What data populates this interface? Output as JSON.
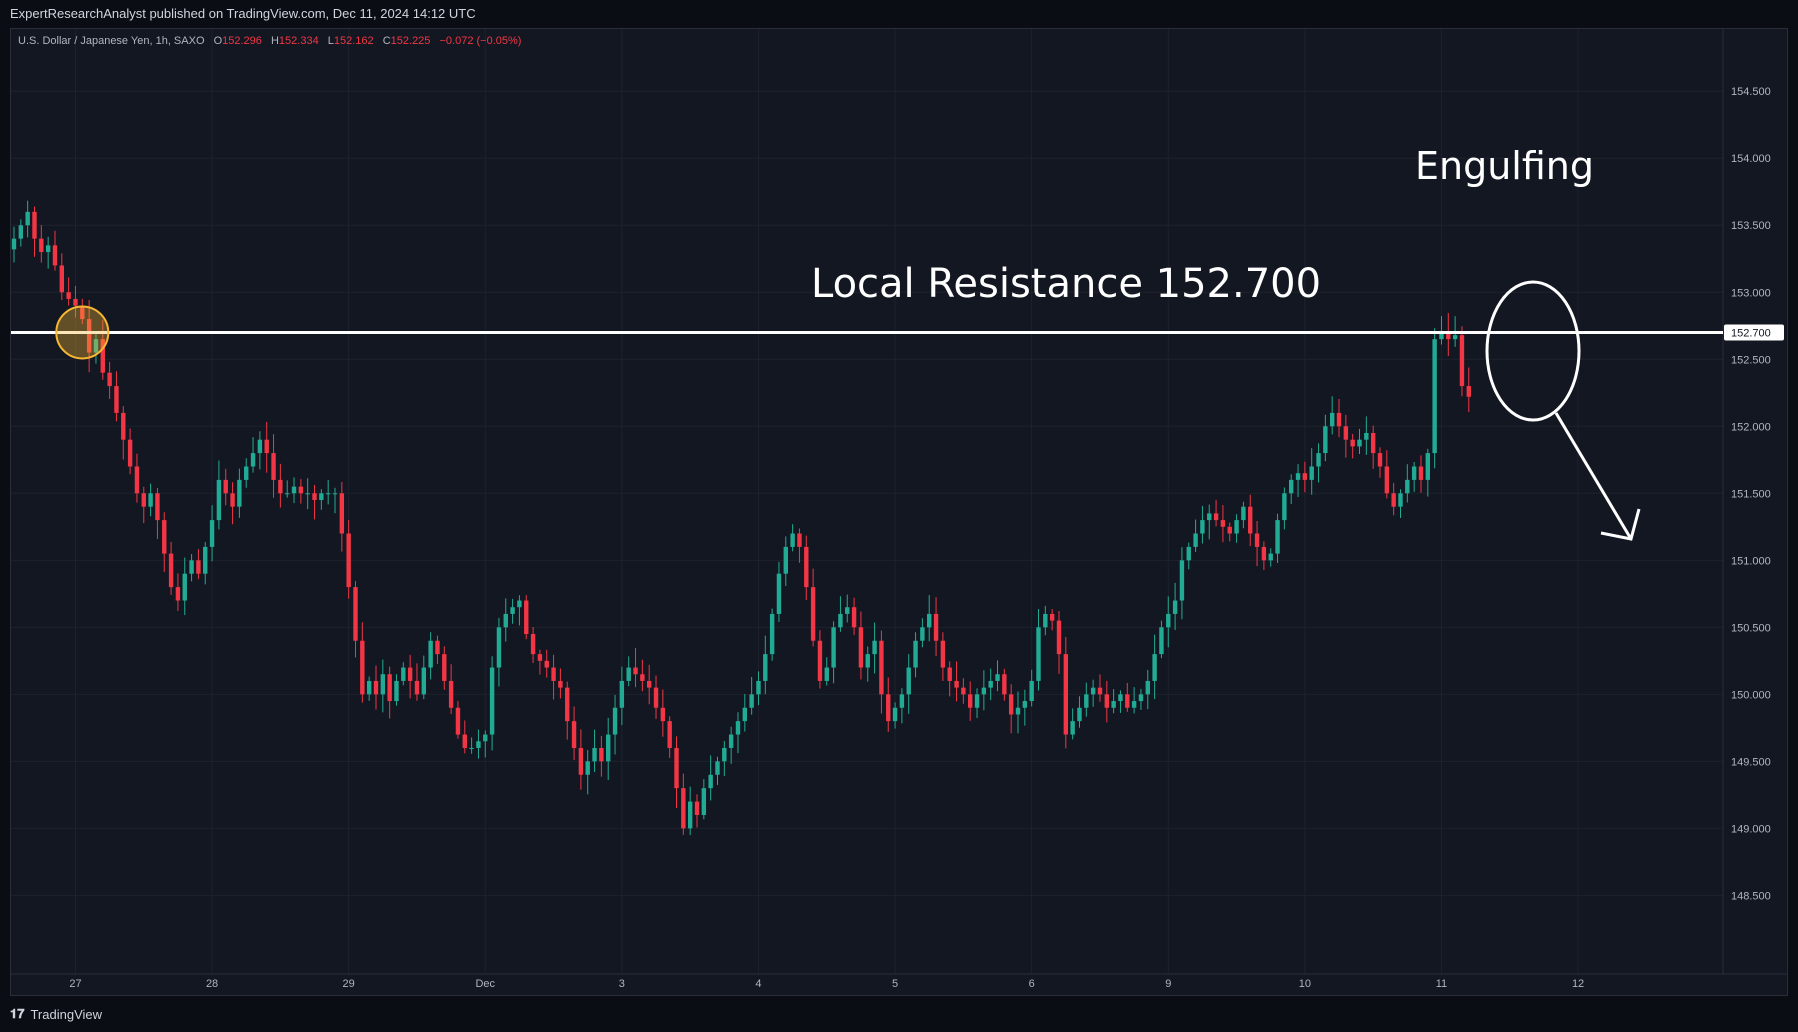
{
  "header": {
    "publisher": "ExpertResearchAnalyst published on TradingView.com, Dec 11, 2024 14:12 UTC"
  },
  "legend": {
    "symbol": "U.S. Dollar / Japanese Yen, 1h, SAXO",
    "open_label": "O",
    "open": "152.296",
    "high_label": "H",
    "high": "152.334",
    "low_label": "L",
    "low": "152.162",
    "close_label": "C",
    "close": "152.225",
    "change": "−0.072 (−0.05%)"
  },
  "footer": {
    "brand": "TradingView",
    "logo_icon": "tradingview-logo-icon"
  },
  "annotations": {
    "resistance_text": "Local Resistance 152.700",
    "engulfing_text": "Engulfing",
    "price_marker": "152.700",
    "resistance_level": 152.7
  },
  "colors": {
    "up": "#22ab94",
    "down": "#f23645",
    "background": "#131722",
    "grid": "#1e222d",
    "axis_text": "#b2b5be",
    "circle_highlight": "#f7b731"
  },
  "chart_data": {
    "type": "candlestick",
    "title": "",
    "xlabel": "",
    "ylabel": "",
    "ylim": [
      148.1,
      154.8
    ],
    "y_ticks": [
      "154.500",
      "154.000",
      "153.500",
      "153.000",
      "152.500",
      "152.000",
      "151.500",
      "151.000",
      "150.500",
      "150.000",
      "149.500",
      "149.000",
      "148.500"
    ],
    "x_ticks": [
      {
        "label": "27",
        "index": 9
      },
      {
        "label": "28",
        "index": 29
      },
      {
        "label": "29",
        "index": 49
      },
      {
        "label": "Dec",
        "index": 69
      },
      {
        "label": "3",
        "index": 89
      },
      {
        "label": "4",
        "index": 109
      },
      {
        "label": "5",
        "index": 129
      },
      {
        "label": "6",
        "index": 149
      },
      {
        "label": "9",
        "index": 169
      },
      {
        "label": "10",
        "index": 189
      },
      {
        "label": "11",
        "index": 209
      },
      {
        "label": "12",
        "index": 229
      }
    ],
    "closes": [
      153.4,
      153.5,
      153.6,
      153.4,
      153.3,
      153.35,
      153.2,
      153.0,
      152.95,
      152.9,
      152.8,
      152.55,
      152.65,
      152.4,
      152.3,
      152.1,
      151.9,
      151.7,
      151.5,
      151.4,
      151.5,
      151.3,
      151.05,
      150.8,
      150.7,
      150.9,
      151.0,
      150.9,
      151.1,
      151.3,
      151.6,
      151.5,
      151.4,
      151.6,
      151.7,
      151.8,
      151.9,
      151.8,
      151.6,
      151.5,
      151.5,
      151.55,
      151.5,
      151.5,
      151.45,
      151.5,
      151.5,
      151.5,
      151.2,
      150.8,
      150.4,
      150.0,
      150.1,
      150.0,
      150.15,
      149.95,
      150.1,
      150.2,
      150.1,
      150.0,
      150.2,
      150.4,
      150.3,
      150.1,
      149.9,
      149.7,
      149.6,
      149.6,
      149.65,
      149.7,
      150.2,
      150.5,
      150.6,
      150.65,
      150.7,
      150.45,
      150.3,
      150.25,
      150.2,
      150.1,
      150.05,
      149.8,
      149.6,
      149.4,
      149.5,
      149.6,
      149.5,
      149.7,
      149.9,
      150.1,
      150.2,
      150.15,
      150.1,
      150.05,
      149.9,
      149.8,
      149.6,
      149.3,
      149.0,
      149.2,
      149.1,
      149.3,
      149.4,
      149.5,
      149.6,
      149.7,
      149.8,
      149.9,
      150.0,
      150.1,
      150.3,
      150.6,
      150.9,
      151.1,
      151.2,
      151.1,
      150.8,
      150.4,
      150.1,
      150.2,
      150.5,
      150.6,
      150.65,
      150.5,
      150.2,
      150.3,
      150.4,
      150.0,
      149.8,
      149.9,
      150.0,
      150.2,
      150.4,
      150.5,
      150.6,
      150.4,
      150.2,
      150.1,
      150.05,
      150.0,
      149.9,
      150.0,
      150.05,
      150.1,
      150.15,
      150.0,
      149.85,
      149.9,
      149.95,
      150.1,
      150.5,
      150.6,
      150.55,
      150.3,
      149.7,
      149.8,
      149.9,
      150.0,
      150.05,
      150.0,
      149.9,
      149.95,
      150.0,
      149.9,
      149.95,
      150.0,
      150.1,
      150.3,
      150.5,
      150.6,
      150.7,
      151.0,
      151.1,
      151.2,
      151.3,
      151.35,
      151.3,
      151.25,
      151.2,
      151.3,
      151.4,
      151.2,
      151.1,
      151.0,
      151.05,
      151.3,
      151.5,
      151.6,
      151.65,
      151.6,
      151.7,
      151.8,
      152.0,
      152.1,
      152.0,
      151.9,
      151.85,
      151.9,
      151.95,
      151.8,
      151.7,
      151.5,
      151.4,
      151.5,
      151.6,
      151.7,
      151.6,
      151.8,
      152.65,
      152.7,
      152.65,
      152.68,
      152.3,
      152.22
    ],
    "resistance": 152.7
  }
}
